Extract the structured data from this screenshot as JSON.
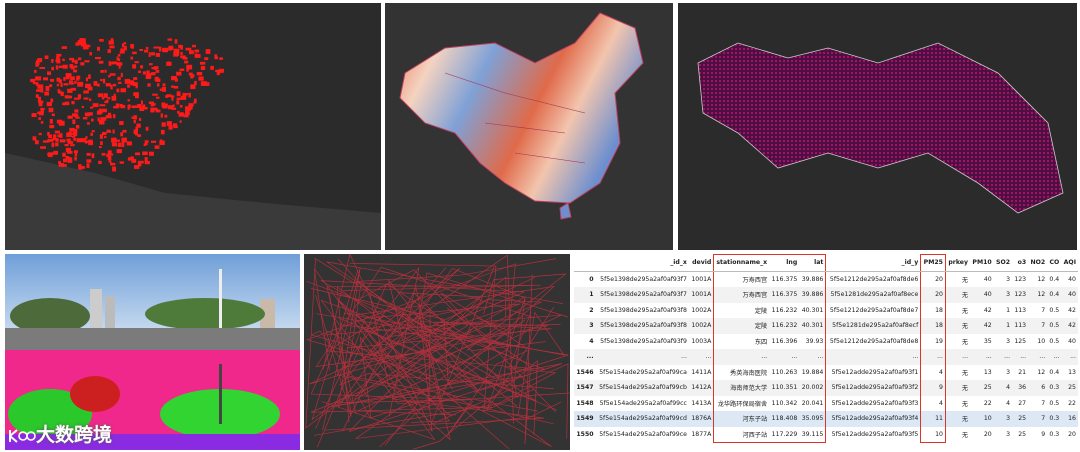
{
  "watermark": "大数跨境",
  "table": {
    "columns": [
      "",
      "_id_x",
      "devid",
      "stationname_x",
      "lng",
      "lat",
      "_id_y",
      "PM25",
      "prkey",
      "PM10",
      "SO2",
      "o3",
      "NO2",
      "CO",
      "AQI"
    ],
    "rows": [
      [
        "0",
        "5f5e1398de295a2af0af93f7",
        "1001A",
        "万寿西宫",
        "116.375",
        "39.886",
        "5f5e1212de295a2af0af8de6",
        "20",
        "无",
        "40",
        "3",
        "123",
        "12",
        "0.4",
        "40"
      ],
      [
        "1",
        "5f5e1398de295a2af0af93f7",
        "1001A",
        "万寿西宫",
        "116.375",
        "39.886",
        "5f5e1281de295a2af0af8ece",
        "20",
        "无",
        "40",
        "3",
        "123",
        "12",
        "0.4",
        "40"
      ],
      [
        "2",
        "5f5e1398de295a2af0af93f8",
        "1002A",
        "定陵",
        "116.232",
        "40.301",
        "5f5e1212de295a2af0af8de7",
        "18",
        "无",
        "42",
        "1",
        "113",
        "7",
        "0.5",
        "42"
      ],
      [
        "3",
        "5f5e1398de295a2af0af93f8",
        "1002A",
        "定陵",
        "116.232",
        "40.301",
        "5f5e1281de295a2af0af8ecf",
        "18",
        "无",
        "42",
        "1",
        "113",
        "7",
        "0.5",
        "42"
      ],
      [
        "4",
        "5f5e1398de295a2af0af93f9",
        "1003A",
        "东四",
        "116.396",
        "39.93",
        "5f5e1212de295a2af0af8de8",
        "19",
        "无",
        "35",
        "3",
        "125",
        "10",
        "0.5",
        "40"
      ],
      [
        "...",
        "...",
        "...",
        "...",
        "...",
        "...",
        "...",
        "...",
        "...",
        "...",
        "...",
        "...",
        "...",
        "...",
        "..."
      ],
      [
        "1546",
        "5f5e154ade295a2af0af99ca",
        "1411A",
        "秀英海南医院",
        "110.263",
        "19.884",
        "5f5e12adde295a2af0af93f1",
        "4",
        "无",
        "13",
        "3",
        "21",
        "12",
        "0.4",
        "13"
      ],
      [
        "1547",
        "5f5e154ade295a2af0af99cb",
        "1412A",
        "海南师范大学",
        "110.351",
        "20.002",
        "5f5e12adde295a2af0af93f2",
        "9",
        "无",
        "25",
        "4",
        "36",
        "6",
        "0.3",
        "25"
      ],
      [
        "1548",
        "5f5e154ade295a2af0af99cc",
        "1413A",
        "龙华路环保局宿舍",
        "110.342",
        "20.041",
        "5f5e12adde295a2af0af93f3",
        "4",
        "无",
        "22",
        "4",
        "27",
        "7",
        "0.5",
        "22"
      ],
      [
        "1549",
        "5f5e154ade295a2af0af99cd",
        "1876A",
        "河东子站",
        "118.408",
        "35.095",
        "5f5e12adde295a2af0af93f4",
        "11",
        "无",
        "10",
        "3",
        "25",
        "7",
        "0.3",
        "16"
      ],
      [
        "1550",
        "5f5e154ade295a2af0af99ce",
        "1877A",
        "河西子站",
        "117.229",
        "39.115",
        "5f5e12adde295a2af0af93f5",
        "10",
        "无",
        "20",
        "3",
        "25",
        "9",
        "0.3",
        "20"
      ]
    ]
  }
}
